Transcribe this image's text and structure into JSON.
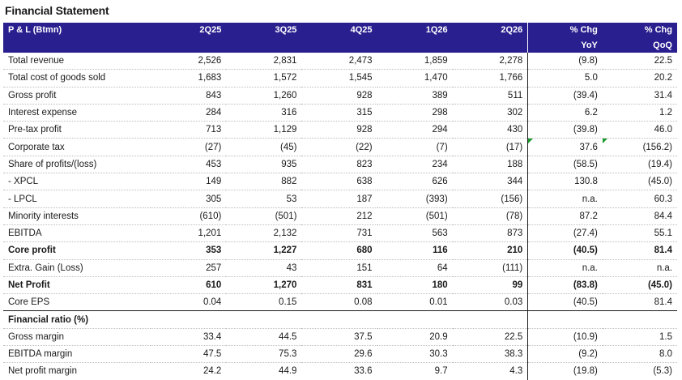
{
  "title": "Financial Statement",
  "header": {
    "label": "P & L (Btmn)",
    "periods": [
      "2Q25",
      "3Q25",
      "4Q25",
      "1Q26",
      "2Q26"
    ],
    "chg_yoy": [
      "% Chg",
      "YoY"
    ],
    "chg_qoq": [
      "% Chg",
      "QoQ"
    ]
  },
  "rows": [
    {
      "label": "Total revenue",
      "values": [
        "2,526",
        "2,831",
        "2,473",
        "1,859",
        "2,278"
      ],
      "yoy": "(9.8)",
      "qoq": "22.5"
    },
    {
      "label": "Total cost of goods sold",
      "values": [
        "1,683",
        "1,572",
        "1,545",
        "1,470",
        "1,766"
      ],
      "yoy": "5.0",
      "qoq": "20.2"
    },
    {
      "label": "Gross profit",
      "values": [
        "843",
        "1,260",
        "928",
        "389",
        "511"
      ],
      "yoy": "(39.4)",
      "qoq": "31.4"
    },
    {
      "label": "Interest expense",
      "values": [
        "284",
        "316",
        "315",
        "298",
        "302"
      ],
      "yoy": "6.2",
      "qoq": "1.2"
    },
    {
      "label": "Pre-tax profit",
      "values": [
        "713",
        "1,129",
        "928",
        "294",
        "430"
      ],
      "yoy": "(39.8)",
      "qoq": "46.0"
    },
    {
      "label": "Corporate tax",
      "values": [
        "(27)",
        "(45)",
        "(22)",
        "(7)",
        "(17)"
      ],
      "yoy": "37.6",
      "qoq": "(156.2)"
    },
    {
      "label": "Share of profits/(loss)",
      "values": [
        "453",
        "935",
        "823",
        "234",
        "188"
      ],
      "yoy": "(58.5)",
      "qoq": "(19.4)"
    },
    {
      "label": " - XPCL",
      "values": [
        "149",
        "882",
        "638",
        "626",
        "344"
      ],
      "yoy": "130.8",
      "qoq": "(45.0)"
    },
    {
      "label": " - LPCL",
      "values": [
        "305",
        "53",
        "187",
        "(393)",
        "(156)"
      ],
      "yoy": "n.a.",
      "qoq": "60.3"
    },
    {
      "label": "Minority interests",
      "values": [
        "(610)",
        "(501)",
        "212",
        "(501)",
        "(78)"
      ],
      "yoy": "87.2",
      "qoq": "84.4"
    },
    {
      "label": "EBITDA",
      "values": [
        "1,201",
        "2,132",
        "731",
        "563",
        "873"
      ],
      "yoy": "(27.4)",
      "qoq": "55.1"
    },
    {
      "label": "Core profit",
      "values": [
        "353",
        "1,227",
        "680",
        "116",
        "210"
      ],
      "yoy": "(40.5)",
      "qoq": "81.4"
    },
    {
      "label": "Extra. Gain (Loss)",
      "values": [
        "257",
        "43",
        "151",
        "64",
        "(111)"
      ],
      "yoy": "n.a.",
      "qoq": "n.a."
    },
    {
      "label": "Net Profit",
      "values": [
        "610",
        "1,270",
        "831",
        "180",
        "99"
      ],
      "yoy": "(83.8)",
      "qoq": "(45.0)"
    },
    {
      "label": "Core EPS",
      "values": [
        "0.04",
        "0.15",
        "0.08",
        "0.01",
        "0.03"
      ],
      "yoy": "(40.5)",
      "qoq": "81.4"
    }
  ],
  "ratio_section": "Financial ratio (%)",
  "ratio_rows": [
    {
      "label": "Gross margin",
      "values": [
        "33.4",
        "44.5",
        "37.5",
        "20.9",
        "22.5"
      ],
      "yoy": "(10.9)",
      "qoq": "1.5"
    },
    {
      "label": "EBITDA margin",
      "values": [
        "47.5",
        "75.3",
        "29.6",
        "30.3",
        "38.3"
      ],
      "yoy": "(9.2)",
      "qoq": "8.0"
    },
    {
      "label": "Net profit margin",
      "values": [
        "24.2",
        "44.9",
        "33.6",
        "9.7",
        "4.3"
      ],
      "yoy": "(19.8)",
      "qoq": "(5.3)"
    }
  ],
  "colors": {
    "header_bg": "#2a1f8f",
    "flag": "#1a9a2a"
  }
}
